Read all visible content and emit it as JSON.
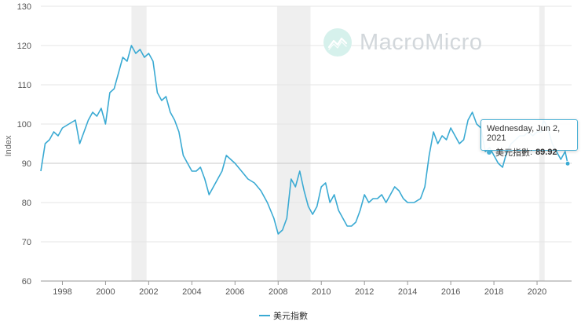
{
  "watermark": {
    "brand": "MacroMicro"
  },
  "tooltip": {
    "date": "Wednesday, Jun 2, 2021",
    "series_name": "美元指數",
    "value": "89.92"
  },
  "legend": {
    "label": "美元指數"
  },
  "colors": {
    "line": "#3aaad3",
    "recession_band": "#efefef",
    "grid": "#e6e6e6",
    "watermark_icon": "#d6f1ec"
  },
  "chart_data": {
    "type": "line",
    "ylabel": "Index",
    "xlabel": "",
    "ylim": [
      60,
      130
    ],
    "yticks": [
      60,
      70,
      80,
      90,
      100,
      110,
      120,
      130
    ],
    "xlim": [
      1997.0,
      2021.6
    ],
    "xticks": [
      1998,
      2000,
      2002,
      2004,
      2006,
      2008,
      2010,
      2012,
      2014,
      2016,
      2018,
      2020
    ],
    "grid": true,
    "legend_position": "bottom-center",
    "reference_line": 90,
    "recession_bands": [
      [
        2001.2,
        2001.9
      ],
      [
        2007.95,
        2009.5
      ],
      [
        2020.1,
        2020.35
      ]
    ],
    "series": [
      {
        "name": "美元指數",
        "x": [
          1997.0,
          1997.2,
          1997.4,
          1997.6,
          1997.8,
          1998.0,
          1998.3,
          1998.6,
          1998.8,
          1999.0,
          1999.2,
          1999.4,
          1999.6,
          1999.8,
          2000.0,
          2000.2,
          2000.4,
          2000.6,
          2000.8,
          2001.0,
          2001.2,
          2001.4,
          2001.6,
          2001.8,
          2002.0,
          2002.2,
          2002.4,
          2002.6,
          2002.8,
          2003.0,
          2003.2,
          2003.4,
          2003.6,
          2003.8,
          2004.0,
          2004.2,
          2004.4,
          2004.6,
          2004.8,
          2005.0,
          2005.2,
          2005.4,
          2005.6,
          2005.8,
          2006.0,
          2006.3,
          2006.6,
          2006.9,
          2007.2,
          2007.5,
          2007.8,
          2008.0,
          2008.2,
          2008.4,
          2008.6,
          2008.8,
          2009.0,
          2009.2,
          2009.4,
          2009.6,
          2009.8,
          2010.0,
          2010.2,
          2010.4,
          2010.6,
          2010.8,
          2011.0,
          2011.2,
          2011.4,
          2011.6,
          2011.8,
          2012.0,
          2012.2,
          2012.4,
          2012.6,
          2012.8,
          2013.0,
          2013.2,
          2013.4,
          2013.6,
          2013.8,
          2014.0,
          2014.3,
          2014.6,
          2014.8,
          2015.0,
          2015.2,
          2015.4,
          2015.6,
          2015.8,
          2016.0,
          2016.2,
          2016.4,
          2016.6,
          2016.8,
          2017.0,
          2017.2,
          2017.4,
          2017.6,
          2017.8,
          2018.0,
          2018.2,
          2018.4,
          2018.6,
          2018.8,
          2019.0,
          2019.2,
          2019.4,
          2019.6,
          2019.8,
          2020.0,
          2020.2,
          2020.3,
          2020.5,
          2020.7,
          2020.9,
          2021.1,
          2021.3,
          2021.42
        ],
        "values": [
          88,
          95,
          96,
          98,
          97,
          99,
          100,
          101,
          95,
          98,
          101,
          103,
          102,
          104,
          100,
          108,
          109,
          113,
          117,
          116,
          120,
          118,
          119,
          117,
          118,
          116,
          108,
          106,
          107,
          103,
          101,
          98,
          92,
          90,
          88,
          88,
          89,
          86,
          82,
          84,
          86,
          88,
          92,
          91,
          90,
          88,
          86,
          85,
          83,
          80,
          76,
          72,
          73,
          76,
          86,
          84,
          88,
          83,
          79,
          77,
          79,
          84,
          85,
          80,
          82,
          78,
          76,
          74,
          74,
          75,
          78,
          82,
          80,
          81,
          81,
          82,
          80,
          82,
          84,
          83,
          81,
          80,
          80,
          81,
          84,
          92,
          98,
          95,
          97,
          96,
          99,
          97,
          95,
          96,
          101,
          103,
          100,
          99,
          93,
          94,
          92,
          90,
          89,
          93,
          95,
          96,
          97,
          97,
          98,
          97,
          98,
          98,
          101,
          99,
          95,
          93,
          91,
          93,
          89.92
        ]
      }
    ]
  }
}
